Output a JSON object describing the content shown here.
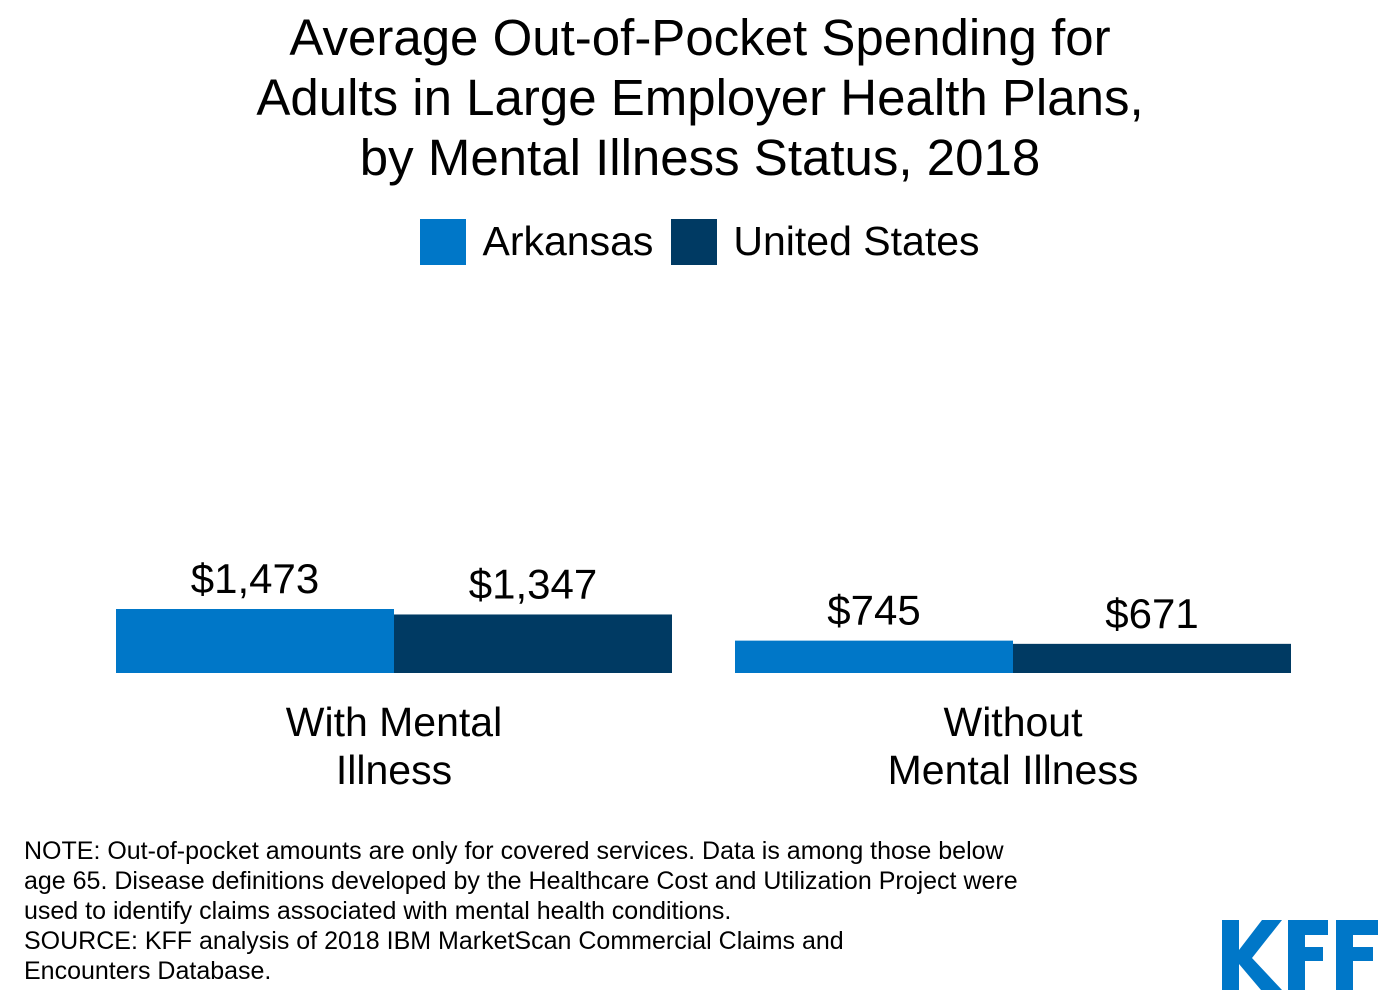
{
  "chart_data": {
    "type": "bar",
    "title_lines": [
      "Average Out-of-Pocket Spending for",
      "Adults in Large Employer Health Plans,",
      "by Mental Illness Status, 2018"
    ],
    "categories": [
      [
        "With Mental",
        "Illness"
      ],
      [
        "Without",
        "Mental Illness"
      ]
    ],
    "series": [
      {
        "name": "Arkansas",
        "color": "#0077c8",
        "values": [
          1473,
          745
        ],
        "labels": [
          "$1,473",
          "$745"
        ]
      },
      {
        "name": "United States",
        "color": "#003a63",
        "values": [
          1347,
          671
        ],
        "labels": [
          "$1,347",
          "$671"
        ]
      }
    ],
    "ylim": [
      0,
      1473
    ],
    "legend_position": "top-center",
    "grid": false
  },
  "note_lines": [
    "NOTE: Out-of-pocket amounts are only for covered services. Data is among those below",
    "age 65. Disease definitions developed by the Healthcare Cost and Utilization Project were",
    "used to identify claims associated with mental health conditions.",
    "SOURCE: KFF analysis of 2018 IBM MarketScan Commercial Claims and",
    "Encounters Database."
  ],
  "logo": {
    "text": "KFF",
    "color": "#0077c8"
  }
}
